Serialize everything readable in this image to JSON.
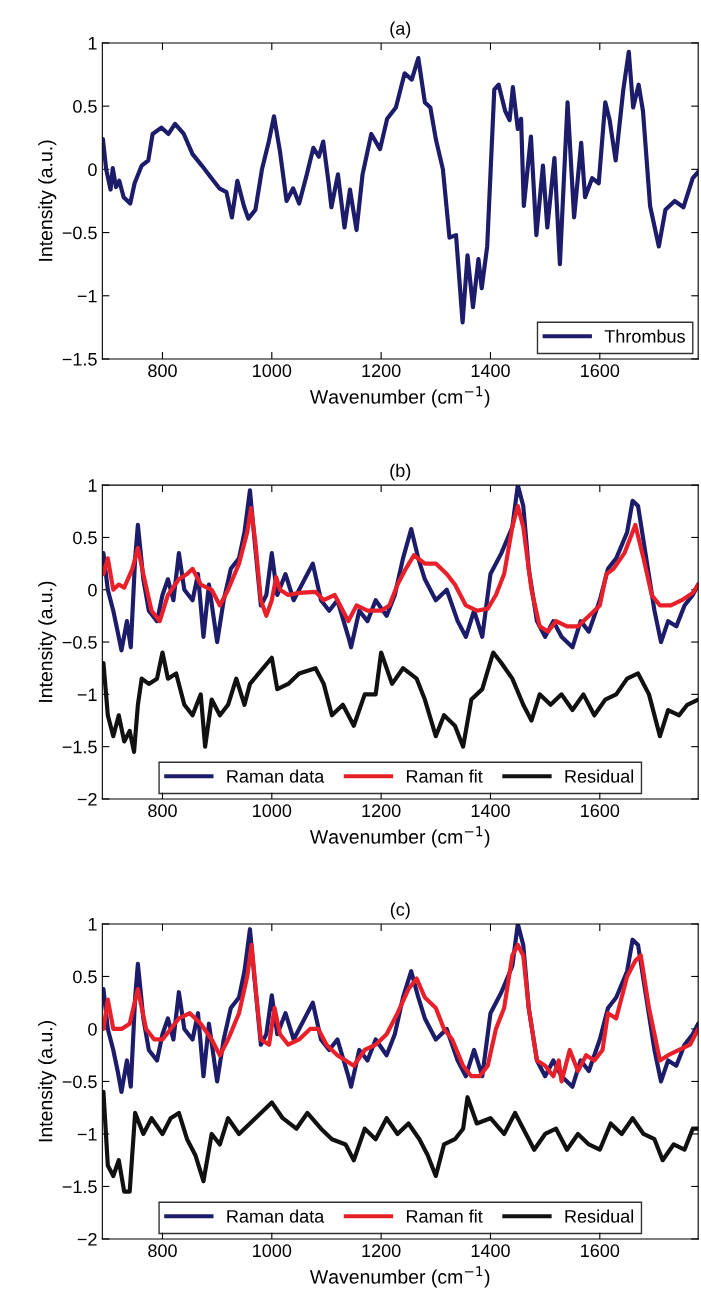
{
  "chart_data": [
    {
      "type": "line",
      "title": "(a)",
      "xlabel": "Wavenumber (cm$^{−1}$)",
      "ylabel": "Intensity (a.u.)",
      "xlim": [
        690,
        1780
      ],
      "xticks": [
        800,
        1000,
        1200,
        1400,
        1600
      ],
      "ylim": [
        -1.5,
        1
      ],
      "yticks": [
        {
          "value": -1.5,
          "label": "−1.5"
        },
        {
          "value": -1,
          "label": "−1"
        },
        {
          "value": -0.5,
          "label": "−0.5"
        },
        0,
        0.5,
        1
      ],
      "grid": false,
      "legend": "bottom right",
      "marker": "none",
      "line_style": "solid",
      "series": [
        {
          "name": "Thrombus",
          "color": "#1c1c6b",
          "x": [
            691,
            697,
            705,
            709,
            715,
            721,
            729,
            741,
            749,
            762,
            774,
            782,
            798,
            811,
            823,
            839,
            855,
            872,
            888,
            904,
            917,
            927,
            937,
            949,
            957,
            970,
            982,
            994,
            1004,
            1015,
            1027,
            1039,
            1050,
            1064,
            1076,
            1086,
            1094,
            1104,
            1109,
            1121,
            1133,
            1143,
            1155,
            1166,
            1182,
            1198,
            1211,
            1227,
            1243,
            1256,
            1268,
            1280,
            1290,
            1300,
            1313,
            1325,
            1337,
            1349,
            1358,
            1368,
            1378,
            1384,
            1394,
            1407,
            1415,
            1427,
            1435,
            1441,
            1450,
            1456,
            1461,
            1474,
            1484,
            1496,
            1504,
            1517,
            1527,
            1541,
            1553,
            1566,
            1573,
            1586,
            1598,
            1610,
            1618,
            1629,
            1643,
            1653,
            1661,
            1671,
            1679,
            1692,
            1708,
            1720,
            1737,
            1753,
            1770,
            1780
          ],
          "values": [
            0.24,
            0.0,
            -0.16,
            0.01,
            -0.14,
            -0.09,
            -0.22,
            -0.27,
            -0.11,
            0.03,
            0.07,
            0.28,
            0.33,
            0.28,
            0.36,
            0.28,
            0.12,
            0.03,
            -0.06,
            -0.15,
            -0.18,
            -0.38,
            -0.09,
            -0.29,
            -0.39,
            -0.32,
            0.0,
            0.21,
            0.42,
            0.14,
            -0.25,
            -0.15,
            -0.27,
            -0.04,
            0.17,
            0.1,
            0.22,
            -0.11,
            -0.3,
            -0.04,
            -0.46,
            -0.16,
            -0.48,
            -0.04,
            0.28,
            0.16,
            0.4,
            0.49,
            0.76,
            0.71,
            0.88,
            0.53,
            0.49,
            0.24,
            0.0,
            -0.54,
            -0.52,
            -1.21,
            -0.68,
            -1.09,
            -0.71,
            -0.94,
            -0.61,
            0.63,
            0.67,
            0.46,
            0.39,
            0.65,
            0.32,
            0.4,
            -0.29,
            0.26,
            -0.52,
            0.03,
            -0.46,
            0.09,
            -0.75,
            0.53,
            -0.38,
            0.21,
            -0.22,
            -0.07,
            -0.11,
            0.53,
            0.39,
            0.07,
            0.63,
            0.93,
            0.49,
            0.67,
            0.46,
            -0.29,
            -0.61,
            -0.32,
            -0.25,
            -0.3,
            -0.07,
            -0.02
          ]
        }
      ]
    },
    {
      "type": "line",
      "title": "(b)",
      "xlabel": "Wavenumber (cm$^{−1}$)",
      "ylabel": "Intensity (a.u.)",
      "xlim": [
        690,
        1780
      ],
      "xticks": [
        800,
        1000,
        1200,
        1400,
        1600
      ],
      "ylim": [
        -2,
        1
      ],
      "yticks": [
        {
          "value": -2,
          "label": "−2"
        },
        {
          "value": -1.5,
          "label": "−1.5"
        },
        {
          "value": -1,
          "label": "−1"
        },
        {
          "value": -0.5,
          "label": "−0.5"
        },
        0,
        0.5,
        1
      ],
      "grid": false,
      "legend": "bottom",
      "marker": "none",
      "line_style": "solid",
      "series": [
        {
          "name": "Raman data",
          "color": "#1c1c6b",
          "x": [
            692,
            700,
            710,
            718,
            725,
            735,
            742,
            750,
            755,
            765,
            775,
            790,
            800,
            810,
            820,
            830,
            840,
            855,
            865,
            875,
            885,
            900,
            912,
            925,
            940,
            950,
            960,
            968,
            980,
            990,
            1000,
            1010,
            1025,
            1040,
            1060,
            1075,
            1090,
            1105,
            1120,
            1140,
            1145,
            1160,
            1175,
            1190,
            1210,
            1225,
            1240,
            1255,
            1268,
            1280,
            1300,
            1320,
            1340,
            1355,
            1370,
            1385,
            1400,
            1420,
            1440,
            1450,
            1460,
            1470,
            1485,
            1500,
            1515,
            1530,
            1550,
            1565,
            1580,
            1600,
            1615,
            1630,
            1650,
            1660,
            1670,
            1685,
            1700,
            1712,
            1725,
            1740,
            1755,
            1770,
            1780
          ],
          "values": [
            0.35,
            0.0,
            -0.2,
            -0.4,
            -0.58,
            -0.3,
            -0.55,
            0.3,
            0.62,
            0.1,
            -0.2,
            -0.3,
            -0.05,
            0.1,
            -0.1,
            0.35,
            0.0,
            -0.1,
            0.15,
            -0.45,
            0.05,
            -0.5,
            -0.1,
            0.2,
            0.3,
            0.55,
            0.95,
            0.5,
            -0.15,
            -0.05,
            0.35,
            -0.05,
            0.15,
            -0.1,
            0.1,
            0.25,
            -0.1,
            -0.2,
            -0.1,
            -0.45,
            -0.55,
            -0.2,
            -0.3,
            -0.1,
            -0.25,
            -0.05,
            0.3,
            0.58,
            0.3,
            0.1,
            -0.1,
            0.0,
            -0.3,
            -0.45,
            -0.2,
            -0.45,
            0.15,
            0.35,
            0.6,
            1.0,
            0.8,
            0.2,
            -0.3,
            -0.45,
            -0.3,
            -0.45,
            -0.55,
            -0.3,
            -0.4,
            -0.1,
            0.2,
            0.3,
            0.55,
            0.85,
            0.8,
            0.3,
            -0.2,
            -0.5,
            -0.3,
            -0.35,
            -0.15,
            -0.05,
            0.05
          ]
        },
        {
          "name": "Raman fit",
          "color": "#e8202a",
          "x": [
            692,
            700,
            710,
            720,
            730,
            745,
            755,
            765,
            780,
            795,
            810,
            830,
            845,
            855,
            870,
            890,
            905,
            920,
            940,
            955,
            962,
            970,
            980,
            990,
            1000,
            1008,
            1015,
            1030,
            1050,
            1080,
            1095,
            1115,
            1130,
            1140,
            1155,
            1175,
            1200,
            1215,
            1230,
            1245,
            1260,
            1280,
            1300,
            1320,
            1335,
            1355,
            1375,
            1395,
            1410,
            1425,
            1440,
            1450,
            1460,
            1475,
            1490,
            1505,
            1520,
            1540,
            1560,
            1580,
            1600,
            1612,
            1625,
            1645,
            1665,
            1680,
            1695,
            1710,
            1730,
            1750,
            1770,
            1780
          ],
          "values": [
            0.15,
            0.3,
            0.0,
            0.05,
            0.02,
            0.2,
            0.4,
            0.15,
            -0.2,
            -0.3,
            -0.05,
            0.1,
            0.15,
            0.2,
            0.05,
            0.0,
            -0.15,
            0.0,
            0.25,
            0.55,
            0.78,
            0.45,
            -0.1,
            -0.25,
            -0.1,
            0.12,
            0.0,
            -0.05,
            -0.03,
            -0.02,
            -0.1,
            -0.05,
            -0.2,
            -0.3,
            -0.15,
            -0.2,
            -0.2,
            -0.15,
            0.05,
            0.2,
            0.33,
            0.25,
            0.25,
            0.15,
            0.05,
            -0.15,
            -0.2,
            -0.18,
            -0.05,
            0.15,
            0.6,
            0.8,
            0.6,
            0.0,
            -0.35,
            -0.4,
            -0.3,
            -0.35,
            -0.35,
            -0.25,
            -0.15,
            0.15,
            0.2,
            0.35,
            0.62,
            0.3,
            -0.05,
            -0.15,
            -0.15,
            -0.1,
            -0.03,
            0.05
          ]
        },
        {
          "name": "Residual",
          "color": "#111111",
          "x": [
            692,
            700,
            710,
            720,
            730,
            740,
            748,
            755,
            762,
            775,
            790,
            800,
            810,
            825,
            840,
            855,
            870,
            878,
            890,
            905,
            920,
            935,
            950,
            960,
            1000,
            1010,
            1030,
            1050,
            1080,
            1095,
            1110,
            1130,
            1150,
            1170,
            1190,
            1200,
            1220,
            1240,
            1265,
            1280,
            1300,
            1315,
            1335,
            1350,
            1365,
            1385,
            1405,
            1420,
            1440,
            1460,
            1475,
            1490,
            1510,
            1530,
            1550,
            1570,
            1590,
            1610,
            1630,
            1650,
            1670,
            1690,
            1710,
            1725,
            1745,
            1760,
            1780
          ],
          "values": [
            -0.7,
            -1.2,
            -1.4,
            -1.2,
            -1.45,
            -1.35,
            -1.55,
            -1.1,
            -0.85,
            -0.9,
            -0.85,
            -0.6,
            -0.85,
            -0.8,
            -1.1,
            -1.2,
            -1.0,
            -1.5,
            -1.05,
            -1.2,
            -1.1,
            -0.85,
            -1.1,
            -0.9,
            -0.65,
            -0.95,
            -0.9,
            -0.8,
            -0.75,
            -0.9,
            -1.2,
            -1.1,
            -1.3,
            -1.0,
            -1.0,
            -0.6,
            -0.9,
            -0.75,
            -0.85,
            -1.05,
            -1.4,
            -1.2,
            -1.3,
            -1.5,
            -1.05,
            -0.95,
            -0.6,
            -0.7,
            -0.85,
            -1.1,
            -1.25,
            -1.0,
            -1.1,
            -1.0,
            -1.15,
            -1.0,
            -1.2,
            -1.05,
            -1.0,
            -0.85,
            -0.8,
            -1.0,
            -1.4,
            -1.15,
            -1.2,
            -1.1,
            -1.05
          ]
        }
      ]
    },
    {
      "type": "line",
      "title": "(c)",
      "xlabel": "Wavenumber (cm$^{−1}$)",
      "ylabel": "Intensity (a.u.)",
      "xlim": [
        690,
        1780
      ],
      "xticks": [
        800,
        1000,
        1200,
        1400,
        1600
      ],
      "ylim": [
        -2,
        1
      ],
      "yticks": [
        {
          "value": -2,
          "label": "−2"
        },
        {
          "value": -1.5,
          "label": "−1.5"
        },
        {
          "value": -1,
          "label": "−1"
        },
        {
          "value": -0.5,
          "label": "−0.5"
        },
        0,
        0.5,
        1
      ],
      "grid": false,
      "legend": "bottom",
      "marker": "none",
      "line_style": "solid",
      "series": [
        {
          "name": "Raman data",
          "color": "#1c1c6b",
          "x": [
            692,
            700,
            710,
            718,
            725,
            735,
            742,
            750,
            755,
            765,
            775,
            790,
            800,
            810,
            820,
            830,
            840,
            855,
            865,
            875,
            885,
            900,
            912,
            925,
            940,
            950,
            960,
            968,
            980,
            990,
            1000,
            1010,
            1025,
            1040,
            1060,
            1075,
            1090,
            1105,
            1120,
            1140,
            1145,
            1160,
            1175,
            1190,
            1210,
            1225,
            1240,
            1255,
            1268,
            1280,
            1300,
            1320,
            1340,
            1355,
            1370,
            1385,
            1400,
            1420,
            1440,
            1450,
            1460,
            1470,
            1485,
            1500,
            1515,
            1530,
            1550,
            1565,
            1580,
            1600,
            1615,
            1630,
            1650,
            1660,
            1670,
            1685,
            1700,
            1712,
            1725,
            1740,
            1755,
            1770,
            1780
          ],
          "values": [
            0.38,
            0.0,
            -0.2,
            -0.4,
            -0.6,
            -0.3,
            -0.55,
            0.3,
            0.62,
            0.1,
            -0.2,
            -0.3,
            -0.05,
            0.1,
            -0.1,
            0.35,
            0.0,
            -0.1,
            0.15,
            -0.45,
            0.05,
            -0.5,
            -0.1,
            0.2,
            0.3,
            0.55,
            0.95,
            0.5,
            -0.15,
            -0.05,
            0.32,
            -0.05,
            0.15,
            -0.1,
            0.1,
            0.25,
            -0.1,
            -0.2,
            -0.1,
            -0.45,
            -0.55,
            -0.2,
            -0.3,
            -0.1,
            -0.25,
            -0.05,
            0.3,
            0.55,
            0.3,
            0.1,
            -0.1,
            0.0,
            -0.3,
            -0.45,
            -0.2,
            -0.45,
            0.15,
            0.35,
            0.6,
            1.0,
            0.8,
            0.2,
            -0.3,
            -0.45,
            -0.3,
            -0.45,
            -0.55,
            -0.3,
            -0.4,
            -0.1,
            0.2,
            0.3,
            0.55,
            0.85,
            0.8,
            0.3,
            -0.2,
            -0.5,
            -0.3,
            -0.35,
            -0.15,
            -0.05,
            0.05
          ]
        },
        {
          "name": "Raman fit",
          "color": "#e8202a",
          "x": [
            692,
            700,
            710,
            725,
            740,
            755,
            770,
            785,
            800,
            815,
            830,
            850,
            870,
            890,
            905,
            920,
            940,
            955,
            963,
            972,
            980,
            995,
            1005,
            1015,
            1030,
            1050,
            1070,
            1085,
            1100,
            1120,
            1135,
            1150,
            1170,
            1190,
            1210,
            1230,
            1250,
            1265,
            1280,
            1300,
            1315,
            1330,
            1350,
            1365,
            1380,
            1395,
            1410,
            1425,
            1440,
            1450,
            1460,
            1470,
            1485,
            1500,
            1515,
            1525,
            1530,
            1545,
            1560,
            1575,
            1590,
            1605,
            1615,
            1630,
            1650,
            1665,
            1675,
            1690,
            1710,
            1725,
            1745,
            1765,
            1780
          ],
          "values": [
            0.0,
            0.28,
            0.0,
            0.0,
            0.05,
            0.38,
            0.0,
            -0.1,
            -0.1,
            0.0,
            0.1,
            0.15,
            0.05,
            -0.1,
            -0.25,
            -0.1,
            0.15,
            0.5,
            0.8,
            0.3,
            -0.1,
            -0.15,
            0.2,
            -0.05,
            -0.15,
            -0.1,
            0.0,
            0.0,
            -0.15,
            -0.25,
            -0.3,
            -0.35,
            -0.2,
            -0.15,
            -0.05,
            0.15,
            0.38,
            0.48,
            0.3,
            0.2,
            0.0,
            -0.1,
            -0.35,
            -0.45,
            -0.45,
            -0.35,
            0.0,
            0.2,
            0.7,
            0.8,
            0.7,
            0.2,
            -0.3,
            -0.35,
            -0.45,
            -0.3,
            -0.5,
            -0.2,
            -0.4,
            -0.25,
            -0.3,
            -0.2,
            0.15,
            0.1,
            0.5,
            0.65,
            0.7,
            0.2,
            -0.3,
            -0.25,
            -0.2,
            -0.15,
            0.0
          ]
        },
        {
          "name": "Residual",
          "color": "#111111",
          "x": [
            692,
            700,
            710,
            720,
            730,
            740,
            750,
            765,
            780,
            800,
            815,
            830,
            845,
            860,
            875,
            890,
            905,
            920,
            940,
            960,
            1000,
            1020,
            1045,
            1065,
            1090,
            1110,
            1135,
            1150,
            1170,
            1190,
            1210,
            1230,
            1250,
            1270,
            1285,
            1300,
            1315,
            1335,
            1350,
            1358,
            1375,
            1400,
            1425,
            1445,
            1465,
            1480,
            1500,
            1520,
            1540,
            1560,
            1580,
            1600,
            1620,
            1640,
            1660,
            1680,
            1700,
            1715,
            1735,
            1755,
            1770,
            1780
          ],
          "values": [
            -0.6,
            -1.3,
            -1.4,
            -1.25,
            -1.55,
            -1.55,
            -0.8,
            -1.0,
            -0.85,
            -1.0,
            -0.85,
            -0.8,
            -1.05,
            -1.2,
            -1.45,
            -1.0,
            -1.1,
            -0.85,
            -1.0,
            -0.9,
            -0.7,
            -0.85,
            -0.95,
            -0.8,
            -0.95,
            -1.05,
            -1.1,
            -1.25,
            -0.95,
            -1.05,
            -0.85,
            -1.0,
            -0.9,
            -1.05,
            -1.2,
            -1.4,
            -1.1,
            -1.05,
            -0.95,
            -0.65,
            -0.9,
            -0.85,
            -1.0,
            -0.8,
            -1.0,
            -1.15,
            -1.0,
            -0.95,
            -1.15,
            -1.0,
            -1.1,
            -1.15,
            -0.9,
            -1.0,
            -0.85,
            -1.0,
            -1.05,
            -1.25,
            -1.1,
            -1.15,
            -0.95,
            -0.95
          ]
        }
      ]
    }
  ]
}
